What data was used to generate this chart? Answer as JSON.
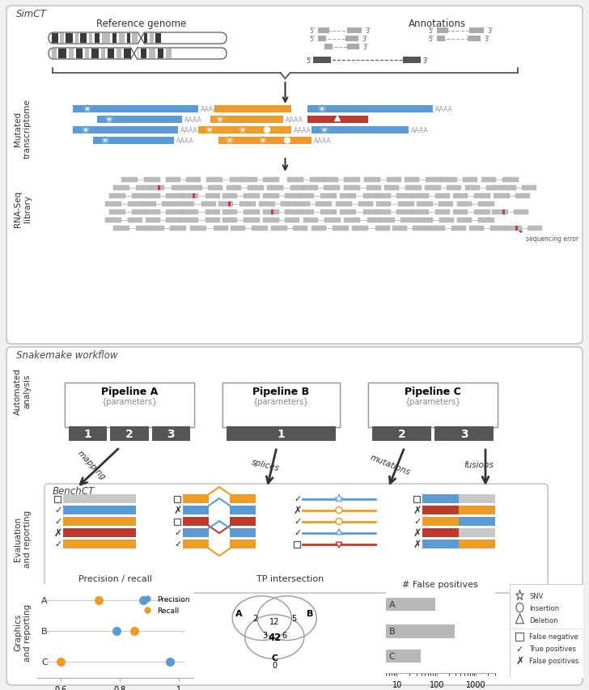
{
  "bg_color": "#f0f0f0",
  "blue": "#5b9bd5",
  "orange": "#ed9c2a",
  "red": "#c0392b",
  "gray_bar": "#c0c0c0",
  "dark_gray": "#555555",
  "light_gray": "#d0d0d0",
  "text_dark": "#333333",
  "simct_label": "SimCT",
  "snakemake_label": "Snakemake workflow",
  "benchct_label": "BenchCT",
  "ref_genome_label": "Reference genome",
  "annotations_label": "Annotations",
  "mutated_transcriptome_label": "Mutated\ntranscriptome",
  "rnaseq_label": "RNA-Seq\nlibrary",
  "auto_analysis_label": "Automated\nanalysis",
  "eval_label": "Evaluation\nand reporting",
  "graphics_label": "Graphics\nand reporting",
  "pipeline_a": "Pipeline A",
  "pipeline_b": "Pipeline B",
  "pipeline_c": "Pipeline C",
  "params": "{parameters}",
  "precision_recall_title": "Precision / recall",
  "tp_intersection_title": "TP intersection",
  "false_positives_title": "# False positives",
  "mapping_label": "mapping",
  "splices_label": "splices",
  "mutations_label": "mutations",
  "fusions_label": "fusions"
}
